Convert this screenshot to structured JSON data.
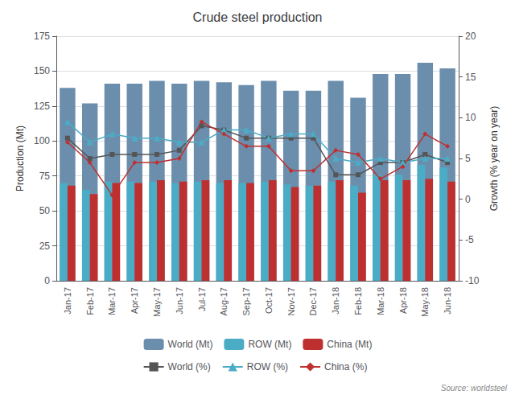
{
  "chart_data": {
    "type": "bar",
    "title": "Crude steel production",
    "ylabel": "Production (Mt)",
    "y2label": "Growth (% year on year)",
    "categories": [
      "Jan-17",
      "Feb-17",
      "Mar-17",
      "Apr-17",
      "May-17",
      "Jun-17",
      "Jul-17",
      "Aug-17",
      "Sep-17",
      "Oct-17",
      "Nov-17",
      "Dec-17",
      "Jan-18",
      "Feb-18",
      "Mar-18",
      "Apr-18",
      "May-18",
      "Jun-18"
    ],
    "series": [
      {
        "name": "World (Mt)",
        "type": "bar",
        "color": "#6C8EAD",
        "values": [
          138,
          127,
          141,
          141,
          143,
          141,
          143,
          142,
          140,
          143,
          136,
          136,
          143,
          131,
          148,
          148,
          156,
          152
        ]
      },
      {
        "name": "ROW (Mt)",
        "type": "bar",
        "color": "#4BACC6",
        "values": [
          70,
          65,
          71,
          71,
          71,
          70,
          71,
          70,
          70,
          71,
          69,
          68,
          71,
          68,
          76,
          76,
          83,
          81
        ]
      },
      {
        "name": "China (Mt)",
        "type": "bar",
        "color": "#BE3030",
        "values": [
          68,
          62,
          70,
          70,
          72,
          71,
          72,
          72,
          70,
          72,
          67,
          68,
          72,
          63,
          72,
          72,
          73,
          71
        ]
      },
      {
        "name": "World (%)",
        "type": "line",
        "axis": "y2",
        "color": "#555555",
        "marker": "square",
        "values": [
          7.5,
          5.0,
          5.5,
          5.5,
          5.5,
          6.0,
          9.0,
          8.5,
          7.5,
          7.5,
          7.5,
          7.5,
          3.0,
          3.0,
          4.5,
          4.5,
          5.5,
          4.5
        ]
      },
      {
        "name": "ROW (%)",
        "type": "line",
        "axis": "y2",
        "color": "#4BACC6",
        "marker": "triangle",
        "values": [
          9.5,
          7.0,
          8.0,
          7.5,
          7.5,
          7.0,
          7.0,
          8.5,
          8.5,
          7.5,
          8.0,
          8.0,
          5.0,
          4.5,
          5.0,
          4.5,
          5.0,
          5.0
        ]
      },
      {
        "name": "China (%)",
        "type": "line",
        "axis": "y2",
        "color": "#BE3030",
        "marker": "diamond",
        "values": [
          7.0,
          4.5,
          0.5,
          4.5,
          4.5,
          5.0,
          9.5,
          8.0,
          6.5,
          6.5,
          3.5,
          3.5,
          6.0,
          5.5,
          2.5,
          4.0,
          8.0,
          6.5
        ]
      }
    ],
    "ylim": [
      0,
      175
    ],
    "yticks": [
      0,
      25,
      50,
      75,
      100,
      125,
      150,
      175
    ],
    "y2lim": [
      -10,
      20
    ],
    "y2ticks": [
      -10,
      -5,
      0,
      5,
      10,
      15,
      20
    ],
    "grid": true,
    "legend": "bottom",
    "annotations": [
      "Source: worldsteel"
    ]
  }
}
